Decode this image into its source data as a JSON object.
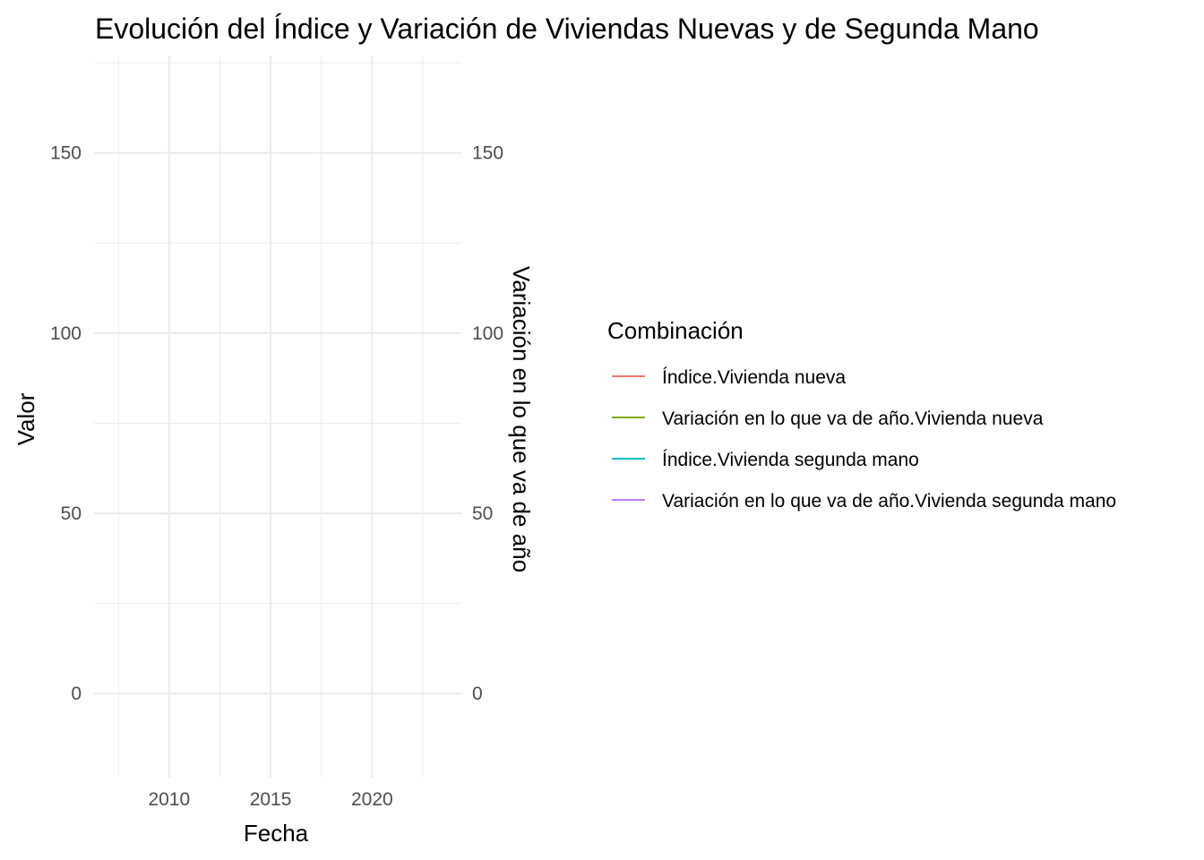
{
  "chart_data": {
    "type": "line",
    "title": "Evolución del Índice y Variación de Viviendas Nuevas y de Segunda Mano",
    "xlabel": "Fecha",
    "ylabel": "Valor",
    "y2label": "Variación en lo que va de año",
    "x_ticks": [
      "2010",
      "2015",
      "2020"
    ],
    "x_tick_values": [
      2010,
      2015,
      2020
    ],
    "xlim": [
      2006.3,
      2024.4
    ],
    "y_ticks": [
      "0",
      "50",
      "100",
      "150"
    ],
    "y_tick_values": [
      0,
      50,
      100,
      150
    ],
    "ylim": [
      -23.3,
      177
    ],
    "y2_ticks": [
      "0",
      "50",
      "100",
      "150"
    ],
    "y2_tick_values": [
      0,
      50,
      100,
      150
    ],
    "grid": true,
    "legend": {
      "title": "Combinación",
      "position": "right",
      "entries": [
        {
          "label": "Índice.Vivienda nueva",
          "color": "#F8766D"
        },
        {
          "label": "Variación en lo que va de año.Vivienda nueva",
          "color": "#7CAE00"
        },
        {
          "label": "Índice.Vivienda segunda mano",
          "color": "#00BFC4"
        },
        {
          "label": "Variación en lo que va de año.Vivienda segunda mano",
          "color": "#C77CFF"
        }
      ]
    },
    "series": [
      {
        "name": "Índice.Vivienda nueva",
        "color": "#F8766D",
        "values": []
      },
      {
        "name": "Variación en lo que va de año.Vivienda nueva",
        "color": "#7CAE00",
        "values": []
      },
      {
        "name": "Índice.Vivienda segunda mano",
        "color": "#00BFC4",
        "values": []
      },
      {
        "name": "Variación en lo que va de año.Vivienda segunda mano",
        "color": "#C77CFF",
        "values": []
      }
    ]
  }
}
